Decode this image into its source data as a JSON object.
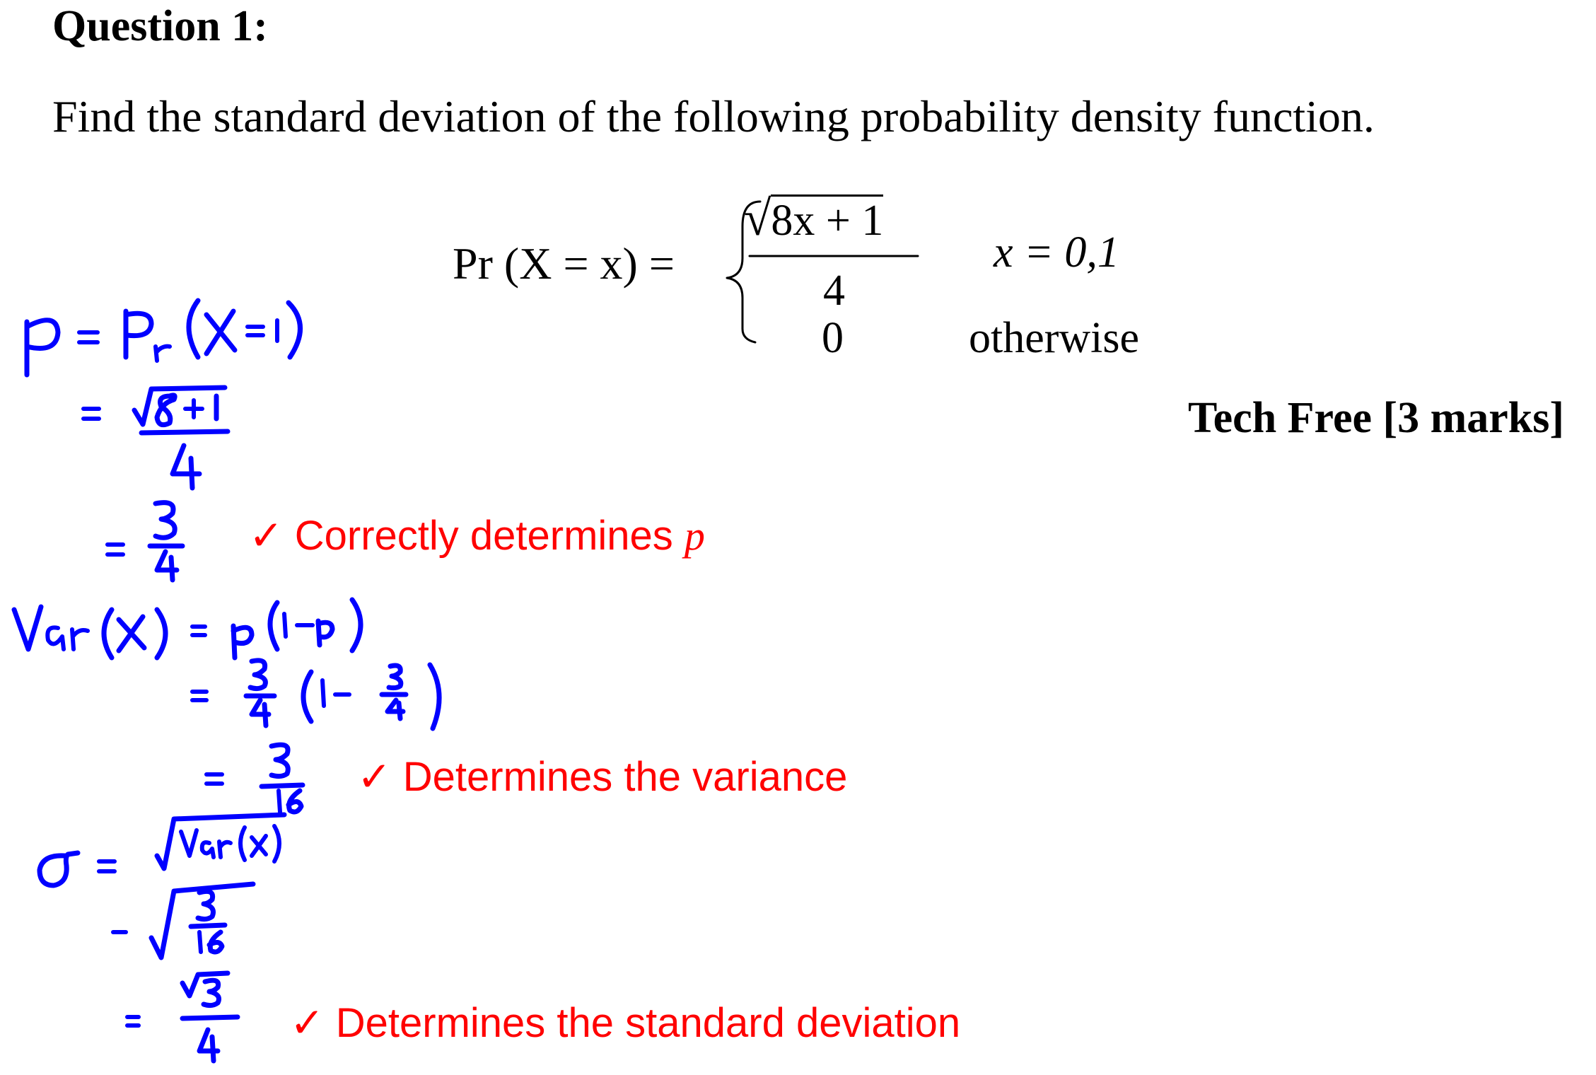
{
  "question": {
    "title": "Question 1:",
    "prompt": "Find the standard deviation of the following probability density function."
  },
  "pdf": {
    "lhs": "Pr (X = x) =",
    "numerator": "8x + 1",
    "denominator": "4",
    "otherwise_value": "0",
    "condition_1": "x = 0,1",
    "condition_2": "otherwise"
  },
  "marks_label": "Tech Free [3 marks]",
  "marking": [
    {
      "check": "✓",
      "text": "Correctly determines ",
      "var": "p"
    },
    {
      "check": "✓",
      "text": "Determines the variance"
    },
    {
      "check": "✓",
      "text": "Determines the standard deviation"
    }
  ],
  "colors": {
    "ink": "#0000ff",
    "marking": "#ff0000",
    "text": "#000000"
  }
}
